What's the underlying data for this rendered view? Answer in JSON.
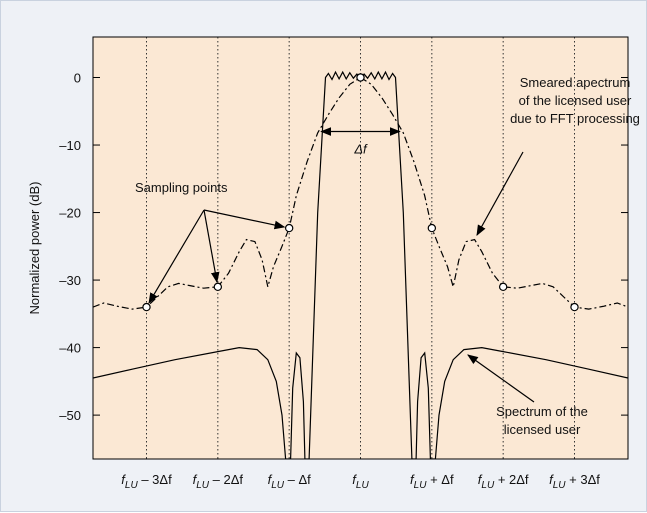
{
  "chart_data": {
    "type": "line",
    "xlabel": "",
    "ylabel": "Normalized power (dB)",
    "ylim": [
      -56.5,
      6
    ],
    "xlim": [
      -3.75,
      3.75
    ],
    "yticks": [
      0,
      -10,
      -20,
      -30,
      -40,
      -50
    ],
    "xticks": [
      {
        "x": -3,
        "label": "f_LU – 3Δf"
      },
      {
        "x": -2,
        "label": "f_LU – 2Δf"
      },
      {
        "x": -1,
        "label": "f_LU – Δf"
      },
      {
        "x": 0,
        "label": "f_LU"
      },
      {
        "x": 1,
        "label": "f_LU + Δf"
      },
      {
        "x": 2,
        "label": "f_LU + 2Δf"
      },
      {
        "x": 3,
        "label": "f_LU + 3Δf"
      }
    ],
    "grid_x": true,
    "grid_y": false,
    "series": [
      {
        "id": "spectrum",
        "style": "solid",
        "points": [
          [
            -3.75,
            -44.5
          ],
          [
            -3.2,
            -43.2
          ],
          [
            -2.6,
            -41.8
          ],
          [
            -2.0,
            -40.6
          ],
          [
            -1.7,
            -40.0
          ],
          [
            -1.45,
            -40.3
          ],
          [
            -1.3,
            -41.8
          ],
          [
            -1.18,
            -45.0
          ],
          [
            -1.1,
            -50.0
          ],
          [
            -1.05,
            -56.5
          ],
          [
            -0.98,
            -56.5
          ],
          [
            -0.95,
            -46
          ],
          [
            -0.9,
            -40.8
          ],
          [
            -0.85,
            -41.5
          ],
          [
            -0.8,
            -48
          ],
          [
            -0.78,
            -56.5
          ],
          [
            -0.72,
            -56.5
          ],
          [
            -0.6,
            -20
          ],
          [
            -0.49,
            0
          ],
          [
            -0.45,
            0.6
          ],
          [
            -0.4,
            -0.3
          ],
          [
            -0.35,
            0.8
          ],
          [
            -0.3,
            -0.2
          ],
          [
            -0.25,
            0.8
          ],
          [
            -0.2,
            -0.2
          ],
          [
            -0.15,
            0.7
          ],
          [
            -0.1,
            -0.1
          ],
          [
            -0.05,
            0.5
          ],
          [
            0.0,
            -0.1
          ],
          [
            0.05,
            0.5
          ],
          [
            0.1,
            -0.1
          ],
          [
            0.15,
            0.7
          ],
          [
            0.2,
            -0.2
          ],
          [
            0.25,
            0.8
          ],
          [
            0.3,
            -0.2
          ],
          [
            0.35,
            0.8
          ],
          [
            0.4,
            -0.3
          ],
          [
            0.45,
            0.6
          ],
          [
            0.49,
            0
          ],
          [
            0.6,
            -20
          ],
          [
            0.72,
            -56.5
          ],
          [
            0.78,
            -56.5
          ],
          [
            0.8,
            -48
          ],
          [
            0.85,
            -41.5
          ],
          [
            0.9,
            -40.8
          ],
          [
            0.95,
            -46
          ],
          [
            0.98,
            -56.5
          ],
          [
            1.05,
            -56.5
          ],
          [
            1.1,
            -50.0
          ],
          [
            1.18,
            -45.0
          ],
          [
            1.3,
            -41.8
          ],
          [
            1.45,
            -40.3
          ],
          [
            1.7,
            -40.0
          ],
          [
            2.0,
            -40.6
          ],
          [
            2.6,
            -41.8
          ],
          [
            3.2,
            -43.2
          ],
          [
            3.75,
            -44.5
          ]
        ]
      },
      {
        "id": "smeared",
        "style": "dashdot",
        "points": [
          [
            -3.75,
            -34
          ],
          [
            -3.6,
            -33.4
          ],
          [
            -3.4,
            -33.9
          ],
          [
            -3.2,
            -34.3
          ],
          [
            -3.0,
            -34.0
          ],
          [
            -2.85,
            -32.5
          ],
          [
            -2.7,
            -31.0
          ],
          [
            -2.55,
            -30.5
          ],
          [
            -2.4,
            -30.8
          ],
          [
            -2.2,
            -31.2
          ],
          [
            -2.0,
            -31.0
          ],
          [
            -1.85,
            -29.0
          ],
          [
            -1.7,
            -25.8
          ],
          [
            -1.6,
            -24.0
          ],
          [
            -1.48,
            -24.3
          ],
          [
            -1.38,
            -27.0
          ],
          [
            -1.3,
            -31.0
          ],
          [
            -1.22,
            -28.0
          ],
          [
            -1.1,
            -25.0
          ],
          [
            -1.0,
            -22.3
          ],
          [
            -0.9,
            -17.5
          ],
          [
            -0.75,
            -12.5
          ],
          [
            -0.6,
            -8.2
          ],
          [
            -0.45,
            -5.5
          ],
          [
            -0.3,
            -3.0
          ],
          [
            -0.15,
            -1.0
          ],
          [
            0.0,
            0.0
          ],
          [
            0.15,
            -1.0
          ],
          [
            0.3,
            -3.0
          ],
          [
            0.45,
            -5.5
          ],
          [
            0.6,
            -8.2
          ],
          [
            0.75,
            -12.5
          ],
          [
            0.9,
            -17.5
          ],
          [
            1.0,
            -22.3
          ],
          [
            1.1,
            -25.0
          ],
          [
            1.22,
            -28.0
          ],
          [
            1.3,
            -31.0
          ],
          [
            1.38,
            -27.0
          ],
          [
            1.48,
            -24.3
          ],
          [
            1.6,
            -24.0
          ],
          [
            1.7,
            -25.8
          ],
          [
            1.85,
            -29.0
          ],
          [
            2.0,
            -31.0
          ],
          [
            2.2,
            -31.2
          ],
          [
            2.4,
            -30.8
          ],
          [
            2.55,
            -30.5
          ],
          [
            2.7,
            -31.0
          ],
          [
            2.85,
            -32.5
          ],
          [
            3.0,
            -34.0
          ],
          [
            3.2,
            -34.3
          ],
          [
            3.4,
            -33.9
          ],
          [
            3.6,
            -33.4
          ],
          [
            3.75,
            -34
          ]
        ]
      }
    ],
    "sampling_points": [
      [
        -3,
        -34
      ],
      [
        -2,
        -31
      ],
      [
        -1,
        -22.3
      ],
      [
        0,
        0
      ],
      [
        1,
        -22.3
      ],
      [
        2,
        -31
      ],
      [
        3,
        -34
      ]
    ],
    "annotations": {
      "sampling_label": "Sampling points",
      "smeared_label": [
        "Smeared apectrum",
        "of the licensed user",
        "due to FFT processing"
      ],
      "spectrum_label": [
        "Spectrum of the",
        "licensed user"
      ],
      "delta_label": "Δf"
    },
    "colors": {
      "plot_bg": "#fbe8d4",
      "frame_bg": "#eef1f6",
      "line": "#000000",
      "grid": "#333333"
    }
  }
}
